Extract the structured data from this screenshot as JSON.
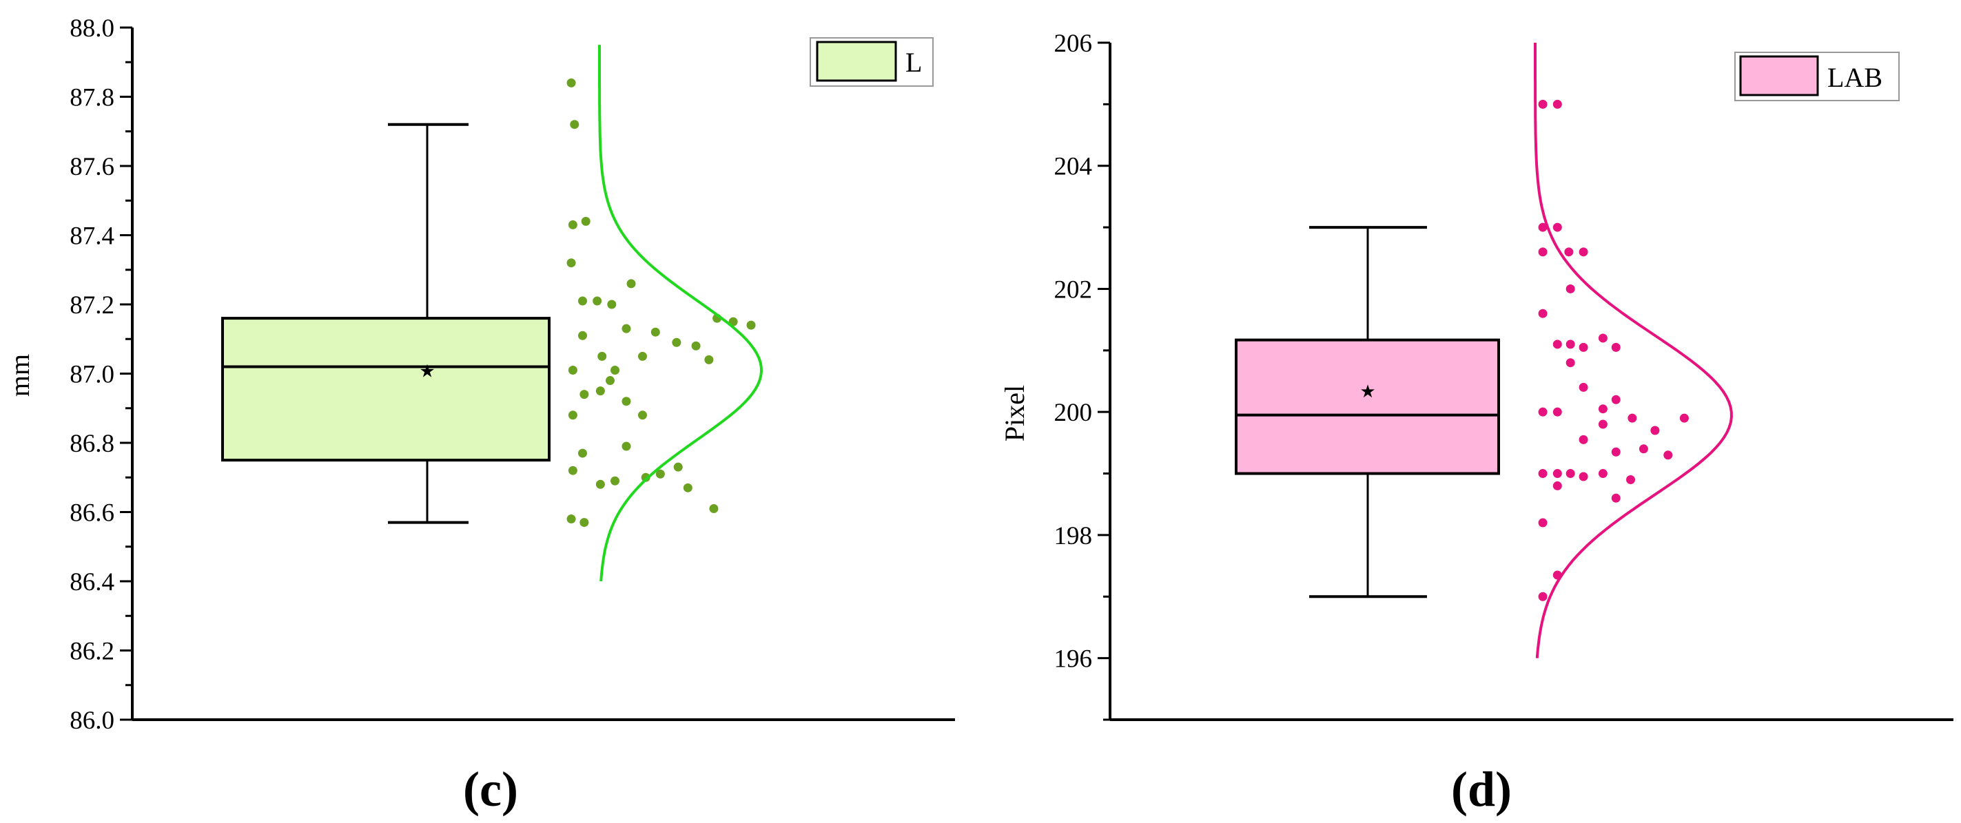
{
  "chart_data": [
    {
      "type": "box",
      "panel_label": "(c)",
      "ylabel": "mm",
      "ylim": [
        86.0,
        88.0
      ],
      "yticks": [
        "86.0",
        "86.2",
        "86.4",
        "86.6",
        "86.8",
        "87.0",
        "87.2",
        "87.4",
        "87.6",
        "87.8",
        "88.0"
      ],
      "legend": {
        "label": "L",
        "position": "top-right"
      },
      "colors": {
        "box_fill": "#dff8bc",
        "points": "#6aa121",
        "curve": "#22d81f"
      },
      "box": {
        "whisker_low": 86.57,
        "q1": 86.75,
        "median": 87.02,
        "q3": 87.16,
        "whisker_high": 87.72,
        "mean": 87.01
      },
      "points": [
        [
          0.03,
          87.84
        ],
        [
          0.05,
          87.72
        ],
        [
          0.04,
          87.43
        ],
        [
          0.12,
          87.44
        ],
        [
          0.03,
          87.32
        ],
        [
          0.1,
          87.21
        ],
        [
          0.19,
          87.21
        ],
        [
          0.28,
          87.2
        ],
        [
          0.4,
          87.26
        ],
        [
          0.1,
          87.11
        ],
        [
          0.37,
          87.13
        ],
        [
          0.55,
          87.12
        ],
        [
          0.68,
          87.09
        ],
        [
          0.8,
          87.08
        ],
        [
          0.93,
          87.16
        ],
        [
          1.03,
          87.15
        ],
        [
          1.14,
          87.14
        ],
        [
          0.22,
          87.05
        ],
        [
          0.47,
          87.05
        ],
        [
          0.88,
          87.04
        ],
        [
          0.04,
          87.01
        ],
        [
          0.3,
          87.01
        ],
        [
          0.27,
          86.98
        ],
        [
          0.11,
          86.94
        ],
        [
          0.21,
          86.95
        ],
        [
          0.37,
          86.92
        ],
        [
          0.04,
          86.88
        ],
        [
          0.47,
          86.88
        ],
        [
          0.1,
          86.77
        ],
        [
          0.37,
          86.79
        ],
        [
          0.04,
          86.72
        ],
        [
          0.21,
          86.68
        ],
        [
          0.3,
          86.69
        ],
        [
          0.49,
          86.7
        ],
        [
          0.58,
          86.71
        ],
        [
          0.69,
          86.73
        ],
        [
          0.75,
          86.67
        ],
        [
          0.91,
          86.61
        ],
        [
          0.03,
          86.58
        ],
        [
          0.11,
          86.57
        ]
      ],
      "curve": {
        "mean": 87.01,
        "sd": 0.2,
        "ymin": 86.4,
        "ymax": 87.95
      }
    },
    {
      "type": "box",
      "panel_label": "(d)",
      "ylabel": "Pixel",
      "ylim": [
        195.0,
        206.0
      ],
      "yticks": [
        "196",
        "198",
        "200",
        "202",
        "204",
        "206"
      ],
      "legend": {
        "label": "LAB",
        "position": "top-right"
      },
      "colors": {
        "box_fill": "#ffb5dc",
        "points": "#e6127e",
        "curve": "#e6127e"
      },
      "box": {
        "whisker_low": 197,
        "q1": 199,
        "median": 199.95,
        "q3": 201.17,
        "whisker_high": 203,
        "mean": 200.35
      },
      "points": [
        [
          0.03,
          205
        ],
        [
          0.12,
          205
        ],
        [
          0.03,
          203
        ],
        [
          0.12,
          203
        ],
        [
          0.03,
          202.6
        ],
        [
          0.19,
          202.6
        ],
        [
          0.28,
          202.6
        ],
        [
          0.2,
          202
        ],
        [
          0.03,
          201.6
        ],
        [
          0.12,
          201.1
        ],
        [
          0.2,
          201.1
        ],
        [
          0.28,
          201.05
        ],
        [
          0.4,
          201.2
        ],
        [
          0.48,
          201.05
        ],
        [
          0.2,
          200.8
        ],
        [
          0.28,
          200.4
        ],
        [
          0.48,
          200.2
        ],
        [
          0.4,
          200.05
        ],
        [
          0.03,
          200
        ],
        [
          0.12,
          200
        ],
        [
          0.58,
          199.9
        ],
        [
          0.4,
          199.8
        ],
        [
          0.9,
          199.9
        ],
        [
          0.28,
          199.55
        ],
        [
          0.48,
          199.35
        ],
        [
          0.65,
          199.4
        ],
        [
          0.8,
          199.3
        ],
        [
          0.72,
          199.7
        ],
        [
          0.03,
          199
        ],
        [
          0.12,
          199
        ],
        [
          0.2,
          199
        ],
        [
          0.28,
          198.95
        ],
        [
          0.4,
          199
        ],
        [
          0.57,
          198.9
        ],
        [
          0.12,
          198.8
        ],
        [
          0.48,
          198.6
        ],
        [
          0.03,
          198.2
        ],
        [
          0.12,
          197.35
        ],
        [
          0.03,
          197
        ]
      ],
      "curve": {
        "mean": 199.95,
        "sd": 1.3,
        "ymin": 196.0,
        "ymax": 206.0
      }
    }
  ]
}
